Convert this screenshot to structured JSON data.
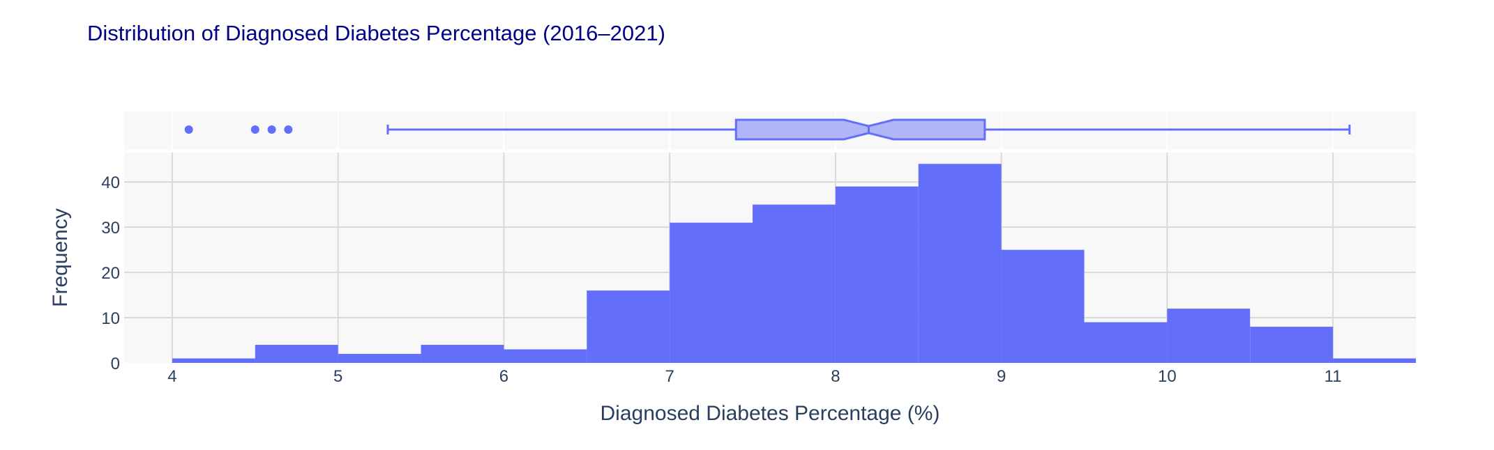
{
  "chart_data": {
    "type": "histogram",
    "title": "Distribution of Diagnosed Diabetes Percentage (2016–2021)",
    "xlabel": "Diagnosed Diabetes Percentage (%)",
    "ylabel": "Frequency",
    "xlim": [
      3.71,
      11.5
    ],
    "ylim": [
      0,
      46.5
    ],
    "x_ticks": [
      "4",
      "5",
      "6",
      "7",
      "8",
      "9",
      "10",
      "11"
    ],
    "y_ticks": [
      "0",
      "10",
      "20",
      "30",
      "40"
    ],
    "grid": true,
    "bins": [
      {
        "start": 4.0,
        "end": 4.5,
        "count": 1
      },
      {
        "start": 4.5,
        "end": 5.0,
        "count": 4
      },
      {
        "start": 5.0,
        "end": 5.5,
        "count": 2
      },
      {
        "start": 5.5,
        "end": 6.0,
        "count": 4
      },
      {
        "start": 6.0,
        "end": 6.5,
        "count": 3
      },
      {
        "start": 6.5,
        "end": 7.0,
        "count": 16
      },
      {
        "start": 7.0,
        "end": 7.5,
        "count": 31
      },
      {
        "start": 7.5,
        "end": 8.0,
        "count": 35
      },
      {
        "start": 8.0,
        "end": 8.5,
        "count": 39
      },
      {
        "start": 8.5,
        "end": 9.0,
        "count": 44
      },
      {
        "start": 9.0,
        "end": 9.5,
        "count": 25
      },
      {
        "start": 9.5,
        "end": 10.0,
        "count": 9
      },
      {
        "start": 10.0,
        "end": 10.5,
        "count": 12
      },
      {
        "start": 10.5,
        "end": 11.0,
        "count": 8
      },
      {
        "start": 11.0,
        "end": 11.5,
        "count": 1
      }
    ],
    "boxplot": {
      "lower_fence": 5.3,
      "q1": 7.4,
      "median": 8.2,
      "q3": 8.9,
      "upper_fence": 11.1,
      "notch_low": 8.05,
      "notch_high": 8.35,
      "outliers": [
        4.1,
        4.5,
        4.6,
        4.7
      ]
    },
    "colors": {
      "bar": "#636efa",
      "box_fill": "#b0b5f7",
      "box_line": "#636efa",
      "title": "#00008b",
      "plot_bg": "#f8f8f8",
      "grid": "#d9d9d9",
      "text": "#2a3f5f"
    }
  }
}
